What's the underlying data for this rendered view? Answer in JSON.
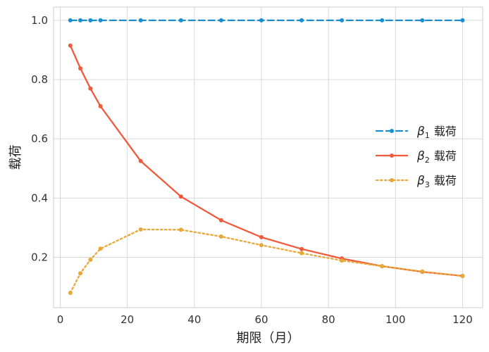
{
  "chart_data": {
    "type": "line",
    "title": "",
    "xlabel": "期限（月）",
    "ylabel": "载荷",
    "xlim": [
      -2,
      126
    ],
    "ylim": [
      0.03,
      1.045
    ],
    "xticks": [
      0,
      20,
      40,
      60,
      80,
      100,
      120
    ],
    "yticks": [
      0.2,
      0.4,
      0.6,
      0.8,
      1.0
    ],
    "xtick_labels": [
      "0",
      "20",
      "40",
      "60",
      "80",
      "100",
      "120"
    ],
    "ytick_labels": [
      "0.2",
      "0.4",
      "0.6",
      "0.8",
      "1.0"
    ],
    "grid": true,
    "legend_position": "center-right",
    "x": [
      3,
      6,
      9,
      12,
      24,
      36,
      48,
      60,
      72,
      84,
      96,
      108,
      120
    ],
    "series": [
      {
        "name": "载荷",
        "legend_symbol": "β",
        "legend_subscript": "1",
        "color": "#1a8fd0",
        "linestyle": "dashed",
        "values": [
          1.0,
          1.0,
          1.0,
          1.0,
          1.0,
          1.0,
          1.0,
          1.0,
          1.0,
          1.0,
          1.0,
          1.0,
          1.0
        ]
      },
      {
        "name": "载荷",
        "legend_symbol": "β",
        "legend_subscript": "2",
        "color": "#f05a3c",
        "linestyle": "solid",
        "values": [
          0.915,
          0.838,
          0.77,
          0.71,
          0.525,
          0.405,
          0.325,
          0.268,
          0.228,
          0.196,
          0.17,
          0.151,
          0.137
        ]
      },
      {
        "name": "载荷",
        "legend_symbol": "β",
        "legend_subscript": "3",
        "color": "#e8a838",
        "linestyle": "dotted",
        "values": [
          0.08,
          0.146,
          0.192,
          0.229,
          0.294,
          0.293,
          0.27,
          0.241,
          0.214,
          0.189,
          0.17,
          0.152,
          0.137
        ]
      }
    ]
  }
}
